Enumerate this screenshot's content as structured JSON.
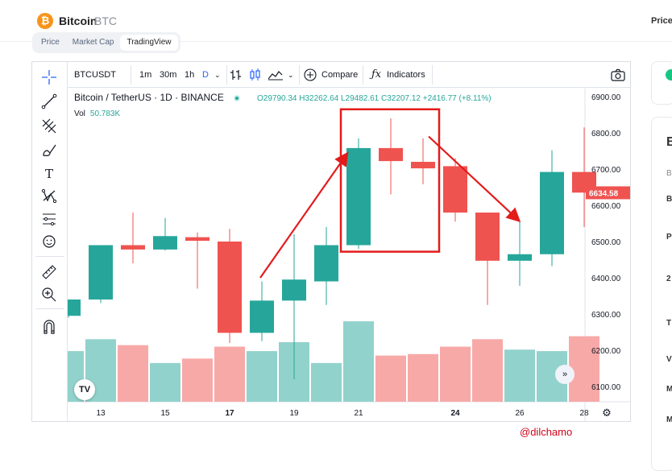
{
  "header": {
    "coin_name": "Bitcoin",
    "coin_symbol": "BTC",
    "logo_glyph": "₿",
    "right_label": "Price:"
  },
  "tabs": [
    {
      "label": "Price",
      "active": false
    },
    {
      "label": "Market Cap",
      "active": false
    },
    {
      "label": "TradingView",
      "active": true
    }
  ],
  "toolbar": {
    "symbol": "BTCUSDT",
    "intervals": [
      "1m",
      "30m",
      "1h",
      "D"
    ],
    "compare_label": "Compare",
    "indicators_label": "Indicators"
  },
  "legend": {
    "title": "Bitcoin / TetherUS · 1D · BINANCE",
    "ohlc": "O29790.34 H32262.64 L29482.61 C32207.12 +2416.77 (+8.11%)",
    "vol_label": "Vol",
    "vol_value": "50.783K"
  },
  "watermark": "@dilchamo",
  "side_letters": [
    "B",
    "B",
    "B",
    "P",
    "2",
    "T",
    "V",
    "M",
    "M"
  ],
  "colors": {
    "up": "#26a69a",
    "down": "#ef5350",
    "annotation": "#e31b1b",
    "up_vol": "#92d2cc",
    "down_vol": "#f7a9a7"
  },
  "chart_data": {
    "type": "candlestick",
    "x_ticks": [
      {
        "label": "13",
        "bold": false
      },
      {
        "label": "15",
        "bold": false
      },
      {
        "label": "17",
        "bold": true
      },
      {
        "label": "19",
        "bold": false
      },
      {
        "label": "21",
        "bold": false
      },
      {
        "label": "24",
        "bold": true
      },
      {
        "label": "26",
        "bold": false
      },
      {
        "label": "28",
        "bold": false
      }
    ],
    "y_ticks": [
      "6900.00",
      "6800.00",
      "6700.00",
      "6600.00",
      "6500.00",
      "6400.00",
      "6300.00",
      "6200.00",
      "6100.00"
    ],
    "ylim": [
      6100,
      6900
    ],
    "last_price": "6634.58",
    "candles": [
      {
        "day": 12,
        "o": 6295,
        "h": 6340,
        "l": 6290,
        "c": 6340
      },
      {
        "day": 13,
        "o": 6340,
        "h": 6490,
        "l": 6330,
        "c": 6490
      },
      {
        "day": 14,
        "o": 6490,
        "h": 6580,
        "l": 6440,
        "c": 6478
      },
      {
        "day": 15,
        "o": 6478,
        "h": 6565,
        "l": 6475,
        "c": 6515
      },
      {
        "day": 16,
        "o": 6512,
        "h": 6525,
        "l": 6370,
        "c": 6502
      },
      {
        "day": 17,
        "o": 6500,
        "h": 6535,
        "l": 6220,
        "c": 6248
      },
      {
        "day": 18,
        "o": 6248,
        "h": 6390,
        "l": 6225,
        "c": 6337
      },
      {
        "day": 19,
        "o": 6337,
        "h": 6520,
        "l": 6120,
        "c": 6395
      },
      {
        "day": 20,
        "o": 6390,
        "h": 6540,
        "l": 6325,
        "c": 6490
      },
      {
        "day": 21,
        "o": 6490,
        "h": 6785,
        "l": 6480,
        "c": 6758
      },
      {
        "day": 22,
        "o": 6758,
        "h": 6840,
        "l": 6630,
        "c": 6722
      },
      {
        "day": 23,
        "o": 6720,
        "h": 6785,
        "l": 6658,
        "c": 6702
      },
      {
        "day": 24,
        "o": 6708,
        "h": 6730,
        "l": 6555,
        "c": 6580
      },
      {
        "day": 25,
        "o": 6580,
        "h": 6580,
        "l": 6325,
        "c": 6447
      },
      {
        "day": 26,
        "o": 6447,
        "h": 6555,
        "l": 6378,
        "c": 6465
      },
      {
        "day": 27,
        "o": 6465,
        "h": 6752,
        "l": 6432,
        "c": 6692
      },
      {
        "day": 28,
        "o": 6692,
        "h": 6815,
        "l": 6540,
        "c": 6635
      }
    ],
    "volume": [
      {
        "day": 12,
        "v": 0.34,
        "up": true
      },
      {
        "day": 13,
        "v": 0.42,
        "up": true
      },
      {
        "day": 14,
        "v": 0.38,
        "up": false
      },
      {
        "day": 15,
        "v": 0.26,
        "up": true
      },
      {
        "day": 16,
        "v": 0.29,
        "up": false
      },
      {
        "day": 17,
        "v": 0.37,
        "up": false
      },
      {
        "day": 18,
        "v": 0.34,
        "up": true
      },
      {
        "day": 19,
        "v": 0.4,
        "up": true
      },
      {
        "day": 20,
        "v": 0.26,
        "up": true
      },
      {
        "day": 21,
        "v": 0.54,
        "up": true
      },
      {
        "day": 22,
        "v": 0.31,
        "up": false
      },
      {
        "day": 23,
        "v": 0.32,
        "up": false
      },
      {
        "day": 24,
        "v": 0.37,
        "up": false
      },
      {
        "day": 25,
        "v": 0.42,
        "up": false
      },
      {
        "day": 26,
        "v": 0.35,
        "up": true
      },
      {
        "day": 27,
        "v": 0.34,
        "up": true
      },
      {
        "day": 28,
        "v": 0.44,
        "up": false
      }
    ]
  }
}
